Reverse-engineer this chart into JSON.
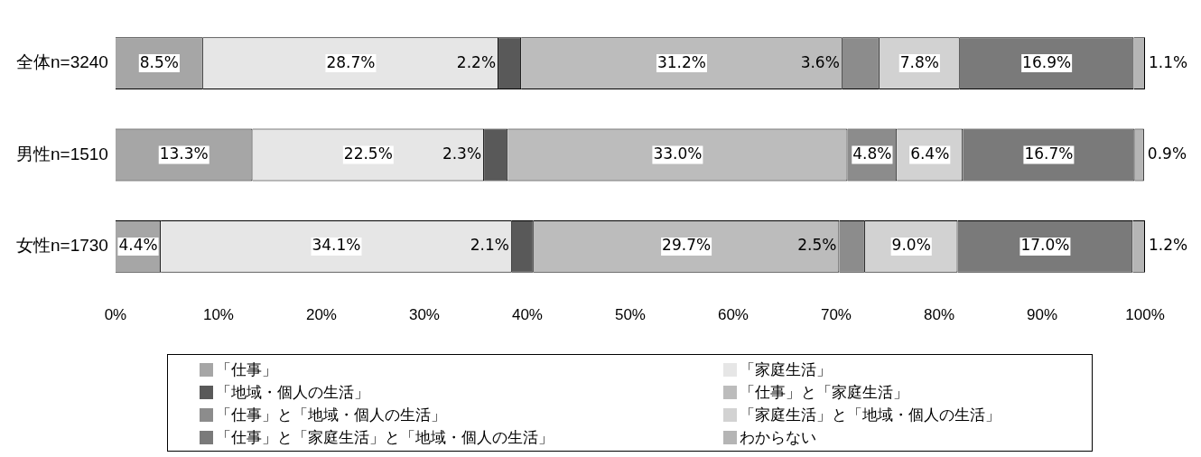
{
  "chart_data": {
    "type": "bar",
    "orientation": "horizontal",
    "stacked": true,
    "categories": [
      "全体n=3240",
      "男性n=1510",
      "女性n=1730"
    ],
    "xlim": [
      0,
      100
    ],
    "xticks": [
      {
        "value": 0,
        "label": "0%"
      },
      {
        "value": 10,
        "label": "10%"
      },
      {
        "value": 20,
        "label": "20%"
      },
      {
        "value": 30,
        "label": "30%"
      },
      {
        "value": 40,
        "label": "40%"
      },
      {
        "value": 50,
        "label": "50%"
      },
      {
        "value": 60,
        "label": "60%"
      },
      {
        "value": 70,
        "label": "70%"
      },
      {
        "value": 80,
        "label": "80%"
      },
      {
        "value": 90,
        "label": "90%"
      },
      {
        "value": 100,
        "label": "100%"
      }
    ],
    "grid": false,
    "legend": "bottom",
    "series": [
      {
        "name": "「仕事」",
        "color": "#a6a6a6",
        "values": [
          8.5,
          13.3,
          4.4
        ],
        "value_labels": [
          "8.5%",
          "13.3%",
          "4.4%"
        ]
      },
      {
        "name": "「家庭生活」",
        "color": "#e6e6e6",
        "values": [
          28.7,
          22.5,
          34.1
        ],
        "value_labels": [
          "28.7%",
          "22.5%",
          "34.1%"
        ]
      },
      {
        "name": "「地域・個人の生活」",
        "color": "#595959",
        "values": [
          2.2,
          2.3,
          2.1
        ],
        "value_labels": [
          "2.2%",
          "2.3%",
          "2.1%"
        ]
      },
      {
        "name": "「仕事」と「家庭生活」",
        "color": "#bcbcbc",
        "values": [
          31.2,
          33.0,
          29.7
        ],
        "value_labels": [
          "31.2%",
          "33.0%",
          "29.7%"
        ]
      },
      {
        "name": "「仕事」と「地域・個人の生活」",
        "color": "#8c8c8c",
        "values": [
          3.6,
          4.8,
          2.5
        ],
        "value_labels": [
          "3.6%",
          "4.8%",
          "2.5%"
        ]
      },
      {
        "name": "「家庭生活」と「地域・個人の生活」",
        "color": "#d2d2d2",
        "values": [
          7.8,
          6.4,
          9.0
        ],
        "value_labels": [
          "7.8%",
          "6.4%",
          "9.0%"
        ]
      },
      {
        "name": "「仕事」と「家庭生活」と「地域・個人の生活」",
        "color": "#7a7a7a",
        "values": [
          16.9,
          16.7,
          17.0
        ],
        "value_labels": [
          "16.9%",
          "16.7%",
          "17.0%"
        ]
      },
      {
        "name": "わからない",
        "color": "#b5b5b5",
        "values": [
          1.1,
          0.9,
          1.2
        ],
        "value_labels": [
          "1.1%",
          "0.9%",
          "1.2%"
        ]
      }
    ]
  }
}
